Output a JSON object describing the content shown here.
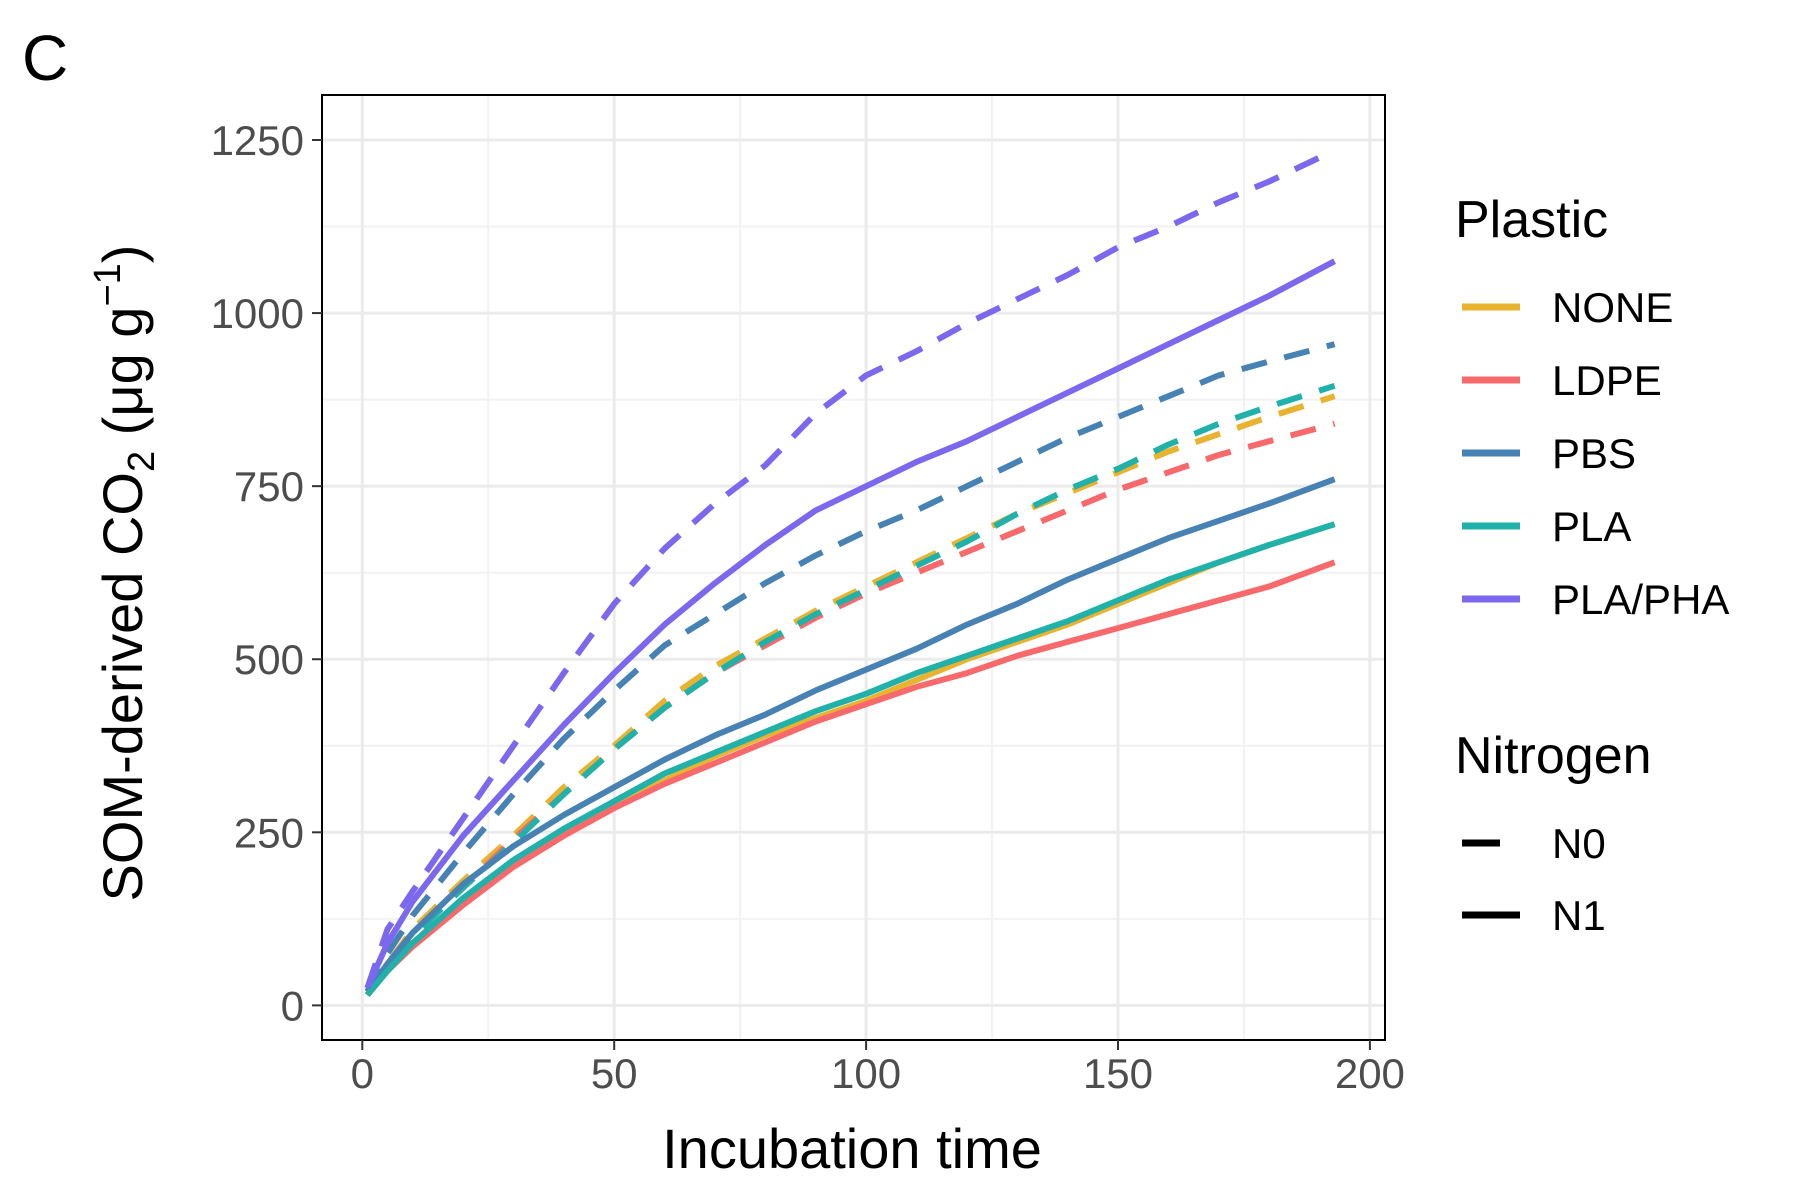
{
  "panel_label": "C",
  "chart_data": {
    "type": "line",
    "xlabel": "Incubation time",
    "ylabel": "SOM-derived CO",
    "ylabel_sub": "2",
    "ylabel_unit": " (μg g",
    "ylabel_sup": "−1",
    "ylabel_close": ")",
    "xlim": [
      -8,
      203
    ],
    "ylim": [
      -50,
      1315
    ],
    "x_ticks": [
      0,
      50,
      100,
      150,
      200
    ],
    "y_ticks": [
      0,
      250,
      500,
      750,
      1000,
      1250
    ],
    "grid": true,
    "legend_position": "right",
    "legend": {
      "color_title": "Plastic",
      "linetype_title": "Nitrogen",
      "color_entries": [
        {
          "name": "NONE",
          "color": "#E9B22F"
        },
        {
          "name": "LDPE",
          "color": "#F8696B"
        },
        {
          "name": "PBS",
          "color": "#4682B4"
        },
        {
          "name": "PLA",
          "color": "#20B2AA"
        },
        {
          "name": "PLA/PHA",
          "color": "#7B68EE"
        }
      ],
      "linetype_entries": [
        {
          "name": "N0",
          "dash": "dashed"
        },
        {
          "name": "N1",
          "dash": "solid"
        }
      ]
    },
    "x": [
      1,
      5,
      10,
      20,
      30,
      40,
      50,
      60,
      70,
      80,
      90,
      100,
      110,
      120,
      130,
      140,
      150,
      160,
      170,
      180,
      193
    ],
    "series": [
      {
        "plastic": "NONE",
        "nitrogen": "N0",
        "color": "#E9B22F",
        "dash": "dashed",
        "values": [
          15,
          60,
          110,
          180,
          245,
          315,
          375,
          440,
          490,
          530,
          570,
          605,
          640,
          675,
          710,
          740,
          770,
          800,
          825,
          850,
          880
        ]
      },
      {
        "plastic": "LDPE",
        "nitrogen": "N0",
        "color": "#F8696B",
        "dash": "dashed",
        "values": [
          15,
          55,
          100,
          170,
          240,
          305,
          370,
          430,
          480,
          520,
          560,
          595,
          625,
          655,
          685,
          715,
          745,
          770,
          795,
          815,
          840
        ]
      },
      {
        "plastic": "PBS",
        "nitrogen": "N0",
        "color": "#4682B4",
        "dash": "dashed",
        "values": [
          20,
          75,
          130,
          220,
          305,
          385,
          455,
          520,
          565,
          610,
          650,
          685,
          715,
          750,
          785,
          820,
          850,
          880,
          910,
          930,
          955
        ]
      },
      {
        "plastic": "PLA",
        "nitrogen": "N0",
        "color": "#20B2AA",
        "dash": "dashed",
        "values": [
          15,
          55,
          100,
          170,
          235,
          305,
          370,
          430,
          480,
          525,
          565,
          600,
          635,
          670,
          710,
          745,
          775,
          810,
          840,
          865,
          895
        ]
      },
      {
        "plastic": "PLA/PHA",
        "nitrogen": "N0",
        "color": "#7B68EE",
        "dash": "dashed",
        "values": [
          25,
          110,
          165,
          270,
          375,
          480,
          580,
          660,
          725,
          780,
          855,
          910,
          945,
          985,
          1020,
          1055,
          1095,
          1125,
          1160,
          1190,
          1235
        ]
      },
      {
        "plastic": "NONE",
        "nitrogen": "N1",
        "color": "#E9B22F",
        "dash": "solid",
        "values": [
          15,
          50,
          90,
          150,
          205,
          250,
          290,
          325,
          360,
          390,
          415,
          440,
          470,
          500,
          525,
          550,
          580,
          610,
          640,
          665,
          695
        ]
      },
      {
        "plastic": "LDPE",
        "nitrogen": "N1",
        "color": "#F8696B",
        "dash": "solid",
        "values": [
          15,
          50,
          85,
          145,
          200,
          245,
          285,
          320,
          350,
          380,
          410,
          435,
          460,
          480,
          505,
          525,
          545,
          565,
          585,
          605,
          640
        ]
      },
      {
        "plastic": "PBS",
        "nitrogen": "N1",
        "color": "#4682B4",
        "dash": "solid",
        "values": [
          20,
          60,
          105,
          175,
          230,
          275,
          315,
          355,
          390,
          420,
          455,
          485,
          515,
          550,
          580,
          615,
          645,
          675,
          700,
          725,
          760
        ]
      },
      {
        "plastic": "PLA",
        "nitrogen": "N1",
        "color": "#20B2AA",
        "dash": "solid",
        "values": [
          15,
          50,
          90,
          155,
          210,
          255,
          295,
          335,
          365,
          395,
          425,
          450,
          480,
          505,
          530,
          555,
          585,
          615,
          640,
          665,
          695
        ]
      },
      {
        "plastic": "PLA/PHA",
        "nitrogen": "N1",
        "color": "#7B68EE",
        "dash": "solid",
        "values": [
          25,
          90,
          150,
          245,
          325,
          405,
          480,
          550,
          610,
          665,
          715,
          750,
          785,
          815,
          850,
          885,
          920,
          955,
          990,
          1025,
          1075
        ]
      }
    ]
  }
}
